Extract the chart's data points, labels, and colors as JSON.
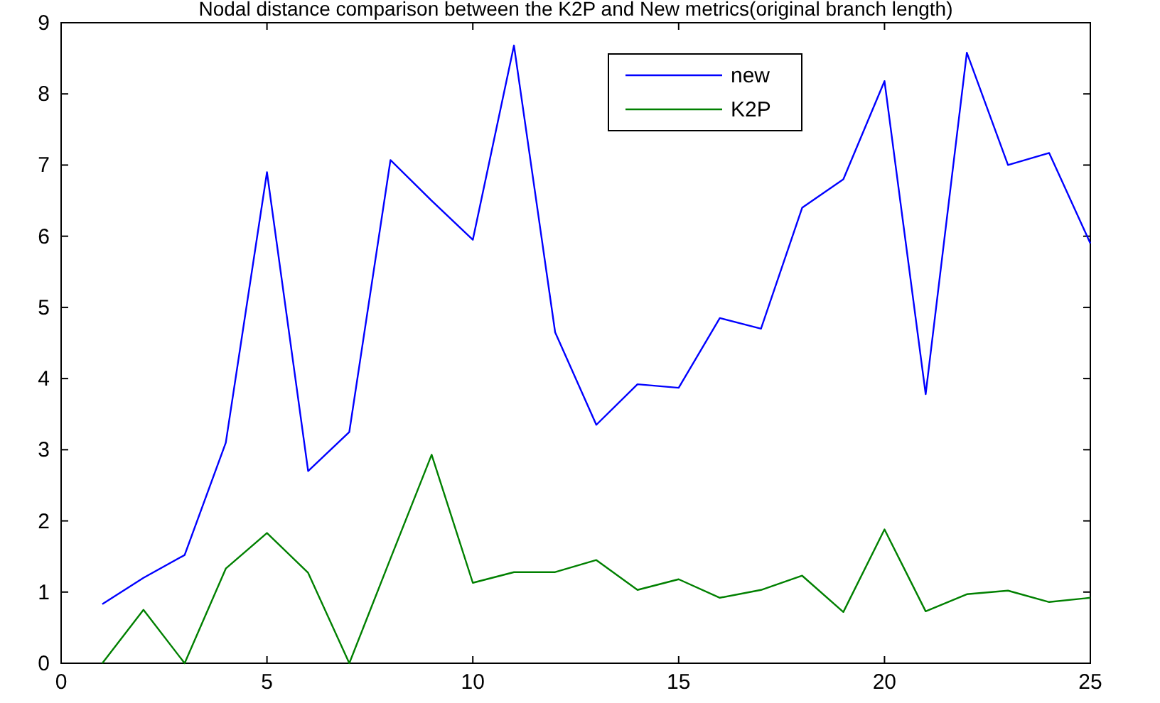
{
  "chart_data": {
    "type": "line",
    "title": "Nodal distance comparison between the K2P and New metrics(original branch length)",
    "x": [
      1,
      2,
      3,
      4,
      5,
      6,
      7,
      8,
      9,
      10,
      11,
      12,
      13,
      14,
      15,
      16,
      17,
      18,
      19,
      20,
      21,
      22,
      23,
      24,
      25
    ],
    "series": [
      {
        "name": "new",
        "color": "#0000ff",
        "values": [
          0.83,
          1.2,
          1.52,
          3.1,
          6.9,
          2.7,
          3.25,
          7.07,
          6.5,
          5.95,
          8.68,
          4.65,
          3.35,
          3.92,
          3.87,
          4.85,
          4.7,
          6.4,
          6.8,
          8.18,
          3.78,
          8.58,
          7.0,
          7.17,
          5.9
        ]
      },
      {
        "name": "K2P",
        "color": "#008000",
        "values": [
          0,
          0.75,
          0,
          1.33,
          1.83,
          1.27,
          0,
          1.47,
          2.93,
          1.13,
          1.28,
          1.28,
          1.45,
          1.03,
          1.18,
          0.92,
          1.03,
          1.23,
          0.72,
          1.88,
          0.73,
          0.97,
          1.02,
          0.86,
          0.92
        ]
      }
    ],
    "xlim": [
      0,
      25
    ],
    "xticks": [
      0,
      5,
      10,
      15,
      20,
      25
    ],
    "ylim": [
      0,
      9
    ],
    "yticks": [
      0,
      1,
      2,
      3,
      4,
      5,
      6,
      7,
      8,
      9
    ],
    "legend": "top right",
    "grid": false
  }
}
